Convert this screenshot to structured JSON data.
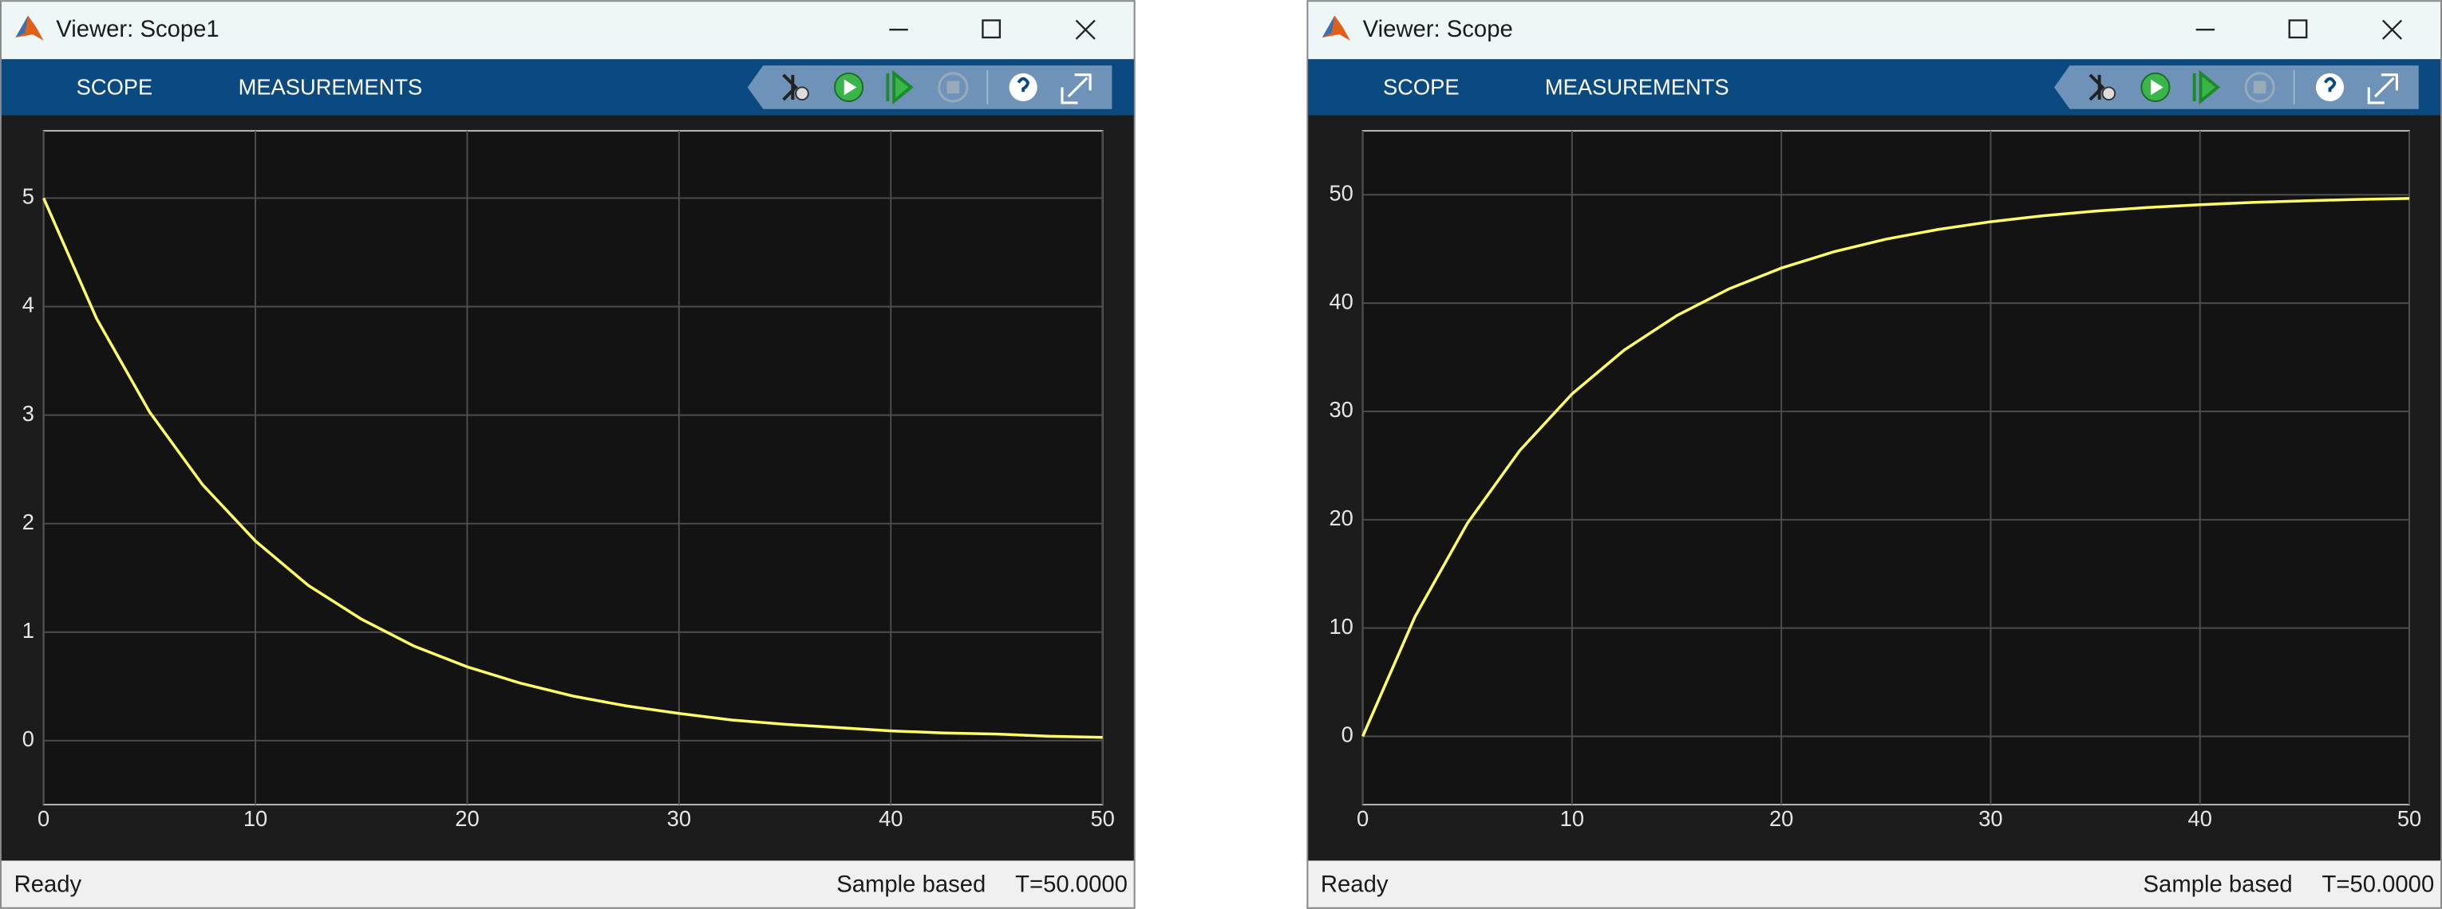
{
  "windows": [
    {
      "title": "Viewer: Scope1",
      "tabs": [
        "SCOPE",
        "MEASUREMENTS"
      ],
      "status": "Ready",
      "mode": "Sample based",
      "time": "T=50.0000"
    },
    {
      "title": "Viewer: Scope",
      "tabs": [
        "SCOPE",
        "MEASUREMENTS"
      ],
      "status": "Ready",
      "mode": "Sample based",
      "time": "T=50.0000"
    }
  ],
  "chart_data": [
    {
      "type": "line",
      "x": [
        0,
        2.5,
        5,
        7.5,
        10,
        12.5,
        15,
        17.5,
        20,
        22.5,
        25,
        27.5,
        30,
        32.5,
        35,
        37.5,
        40,
        42.5,
        45,
        47.5,
        50
      ],
      "series": [
        {
          "color": "#ffff66",
          "values": [
            5,
            3.89,
            3.03,
            2.36,
            1.84,
            1.43,
            1.12,
            0.87,
            0.68,
            0.53,
            0.41,
            0.32,
            0.25,
            0.19,
            0.15,
            0.12,
            0.09,
            0.07,
            0.06,
            0.04,
            0.03
          ]
        }
      ],
      "xlim": [
        0,
        50
      ],
      "xticks": [
        0,
        10,
        20,
        30,
        40,
        50
      ],
      "ylim": [
        -0.59,
        5.62
      ],
      "yticks": [
        0,
        1,
        2,
        3,
        4,
        5
      ],
      "grid": true
    },
    {
      "type": "line",
      "x": [
        0,
        2.5,
        5,
        7.5,
        10,
        12.5,
        15,
        17.5,
        20,
        22.5,
        25,
        27.5,
        30,
        32.5,
        35,
        37.5,
        40,
        42.5,
        45,
        47.5,
        50
      ],
      "series": [
        {
          "color": "#ffff66",
          "values": [
            0,
            11.06,
            19.67,
            26.38,
            31.61,
            35.67,
            38.84,
            41.31,
            43.23,
            44.73,
            45.9,
            46.8,
            47.51,
            48.06,
            48.49,
            48.82,
            49.08,
            49.29,
            49.44,
            49.57,
            49.66
          ]
        }
      ],
      "xlim": [
        0,
        50
      ],
      "xticks": [
        0,
        10,
        20,
        30,
        40,
        50
      ],
      "ylim": [
        -6.3,
        55.9
      ],
      "yticks": [
        0,
        10,
        20,
        30,
        40,
        50
      ],
      "grid": true
    }
  ]
}
